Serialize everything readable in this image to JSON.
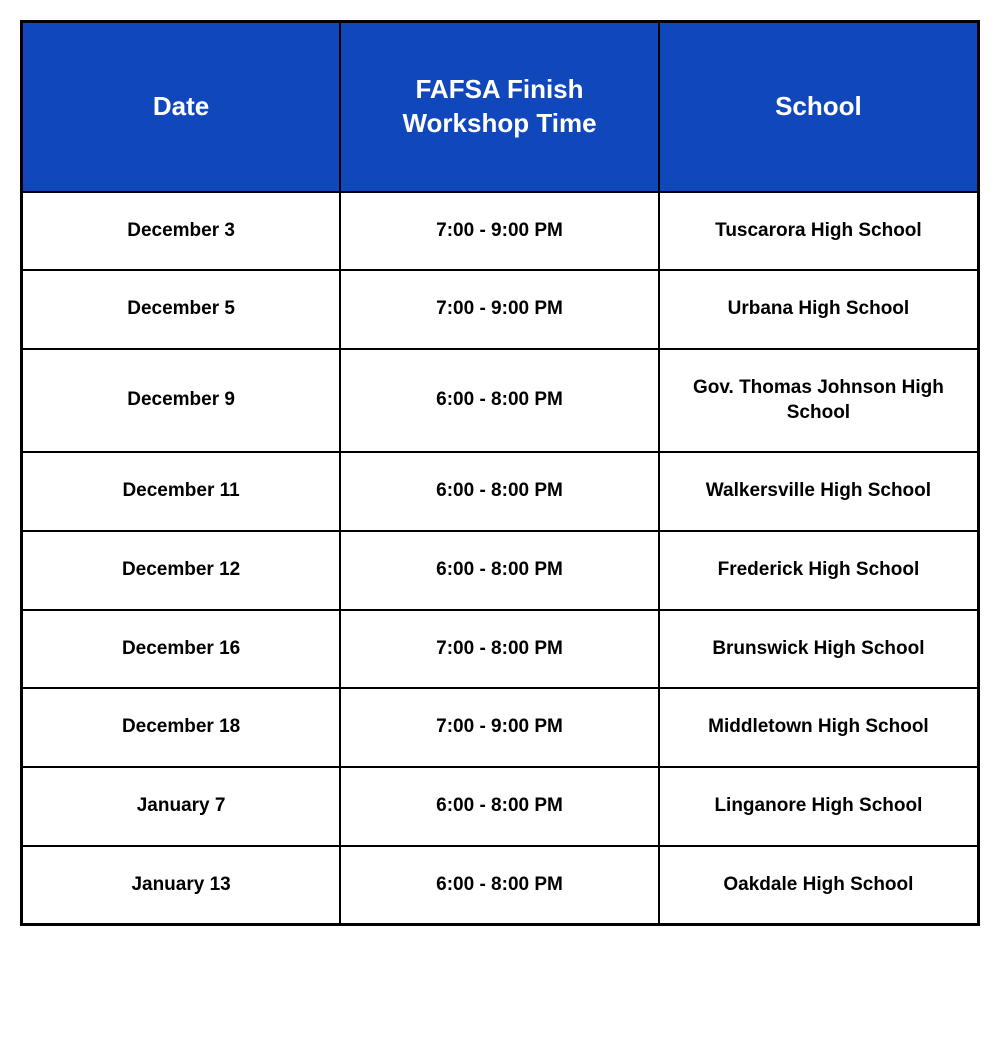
{
  "table": {
    "header_bg_color": "#1048bc",
    "header_text_color": "#ffffff",
    "border_color": "#000000",
    "cell_text_color": "#000000",
    "header_fontsize": 26,
    "cell_fontsize": 19,
    "columns": [
      {
        "label": "Date"
      },
      {
        "label": "FAFSA Finish Workshop Time"
      },
      {
        "label": "School"
      }
    ],
    "rows": [
      {
        "date": "December 3",
        "time": "7:00 - 9:00 PM",
        "school": "Tuscarora High School"
      },
      {
        "date": "December 5",
        "time": "7:00 - 9:00 PM",
        "school": "Urbana High School"
      },
      {
        "date": "December 9",
        "time": "6:00 - 8:00 PM",
        "school": "Gov. Thomas Johnson High School"
      },
      {
        "date": "December 11",
        "time": "6:00 - 8:00 PM",
        "school": "Walkersville High School"
      },
      {
        "date": "December 12",
        "time": "6:00 - 8:00 PM",
        "school": "Frederick High School"
      },
      {
        "date": "December 16",
        "time": "7:00 - 8:00 PM",
        "school": "Brunswick High School"
      },
      {
        "date": "December 18",
        "time": "7:00 - 9:00 PM",
        "school": "Middletown High School"
      },
      {
        "date": "January 7",
        "time": "6:00 - 8:00 PM",
        "school": "Linganore High School"
      },
      {
        "date": "January 13",
        "time": "6:00 - 8:00 PM",
        "school": "Oakdale High School"
      }
    ]
  }
}
